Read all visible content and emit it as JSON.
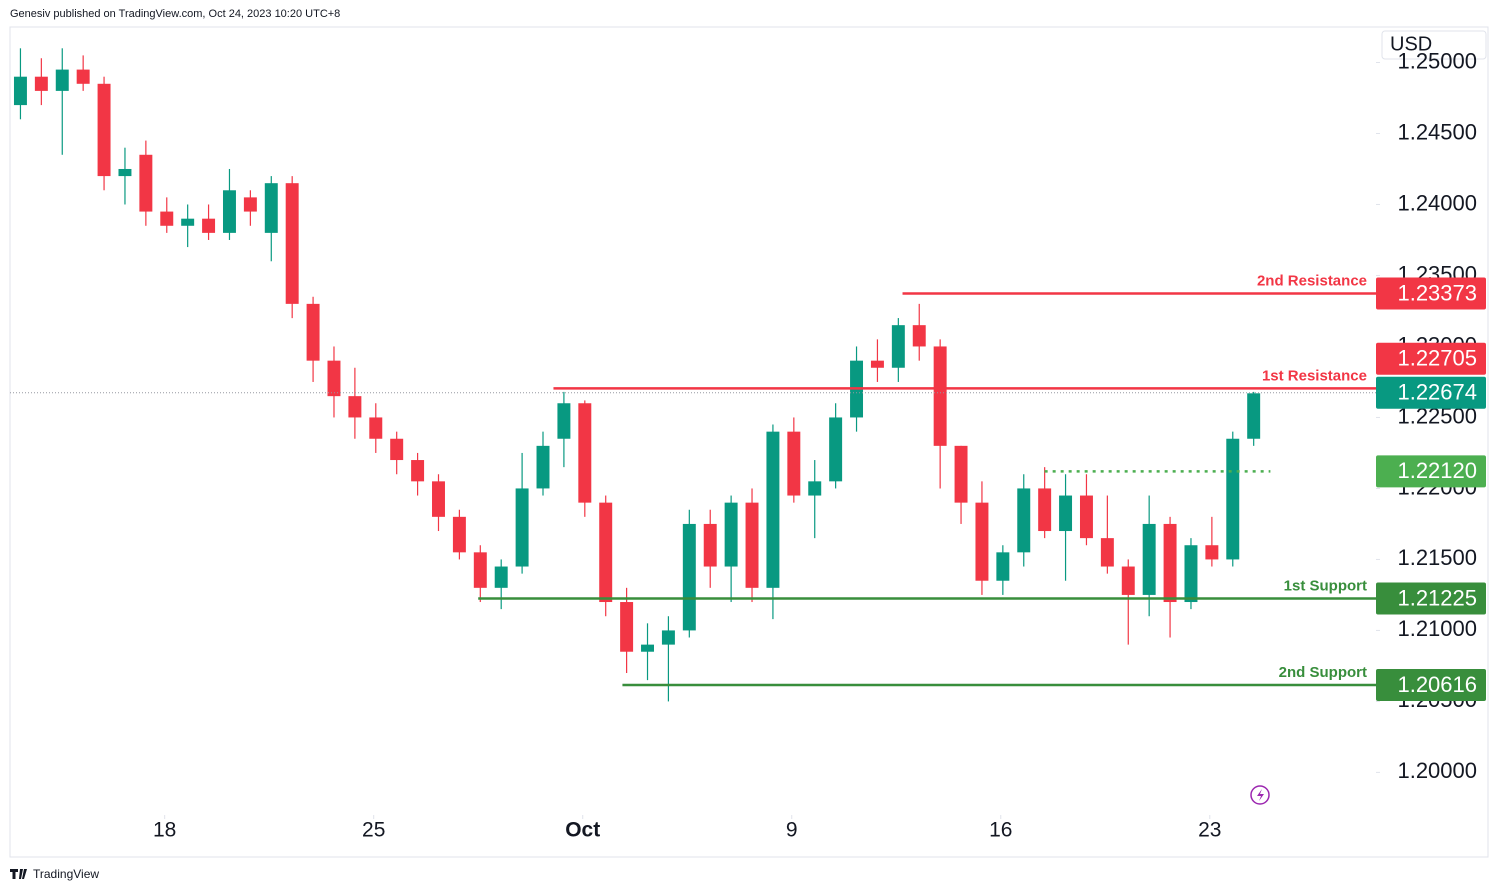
{
  "header": "Genesiv published on TradingView.com, Oct 24, 2023 10:20 UTC+8",
  "footer": "TradingView",
  "chart_data": {
    "type": "candlestick",
    "currency": "USD",
    "up_color": "#089981",
    "down_color": "#f23645",
    "xlim": [
      0,
      65.4
    ],
    "ylim": [
      1.197,
      1.2525
    ],
    "xticks": [
      {
        "value": 7.4,
        "label": "18"
      },
      {
        "value": 17.4,
        "label": "25"
      },
      {
        "value": 27.4,
        "label": "Oct"
      },
      {
        "value": 37.4,
        "label": "9"
      },
      {
        "value": 47.4,
        "label": "16"
      },
      {
        "value": 57.4,
        "label": "23"
      }
    ],
    "yticks": [
      {
        "value": 1.25,
        "label": "1.25000"
      },
      {
        "value": 1.245,
        "label": "1.24500"
      },
      {
        "value": 1.24,
        "label": "1.24000"
      },
      {
        "value": 1.235,
        "label": "1.23500"
      },
      {
        "value": 1.23,
        "label": "1.23000"
      },
      {
        "value": 1.225,
        "label": "1.22500"
      },
      {
        "value": 1.22,
        "label": "1.22000"
      },
      {
        "value": 1.215,
        "label": "1.21500"
      },
      {
        "value": 1.21,
        "label": "1.21000"
      },
      {
        "value": 1.205,
        "label": "1.20500"
      },
      {
        "value": 1.2,
        "label": "1.20000"
      }
    ],
    "x": [
      0.5,
      1.5,
      2.5,
      3.5,
      4.5,
      5.5,
      6.5,
      7.5,
      8.5,
      9.5,
      10.5,
      11.5,
      12.5,
      13.5,
      14.5,
      15.5,
      16.5,
      17.5,
      18.5,
      19.5,
      20.5,
      21.5,
      22.5,
      23.5,
      24.5,
      25.5,
      26.5,
      27.5,
      28.5,
      29.5,
      30.5,
      31.5,
      32.5,
      33.5,
      34.5,
      35.5,
      36.5,
      37.5,
      38.5,
      39.5,
      40.5,
      41.5,
      42.5,
      43.5,
      44.5,
      45.5,
      46.5,
      47.5,
      48.5,
      49.5,
      50.5,
      51.5,
      52.5,
      53.5,
      54.5,
      55.5,
      56.5,
      57.5,
      58.5,
      59.5
    ],
    "open": [
      1.247,
      1.249,
      1.248,
      1.2495,
      1.2485,
      1.242,
      1.2435,
      1.2395,
      1.2385,
      1.239,
      1.238,
      1.2405,
      1.238,
      1.2415,
      1.233,
      1.229,
      1.2265,
      1.225,
      1.2235,
      1.222,
      1.2205,
      1.218,
      1.2155,
      1.213,
      1.2145,
      1.22,
      1.2235,
      1.226,
      1.219,
      1.212,
      1.2085,
      1.209,
      1.21,
      1.2175,
      1.2145,
      1.219,
      1.213,
      1.224,
      1.2195,
      1.2205,
      1.225,
      1.229,
      1.2285,
      1.2315,
      1.23,
      1.223,
      1.219,
      1.2135,
      1.2155,
      1.22,
      1.217,
      1.2195,
      1.2165,
      1.2145,
      1.2125,
      1.2175,
      1.212,
      1.216,
      1.215,
      1.2235
    ],
    "high": [
      1.251,
      1.2503,
      1.251,
      1.2505,
      1.249,
      1.244,
      1.2445,
      1.2405,
      1.24,
      1.24,
      1.2425,
      1.241,
      1.242,
      1.242,
      1.2335,
      1.23,
      1.2285,
      1.226,
      1.224,
      1.2225,
      1.221,
      1.2185,
      1.216,
      1.215,
      1.2225,
      1.224,
      1.2268,
      1.2262,
      1.2195,
      1.213,
      1.2105,
      1.211,
      1.2185,
      1.2185,
      1.2195,
      1.22,
      1.2245,
      1.225,
      1.222,
      1.226,
      1.23,
      1.2305,
      1.232,
      1.233,
      1.2305,
      1.223,
      1.2205,
      1.216,
      1.221,
      1.2215,
      1.221,
      1.221,
      1.2195,
      1.215,
      1.2195,
      1.218,
      1.2165,
      1.218,
      1.224,
      1.2268
    ],
    "low": [
      1.246,
      1.247,
      1.2435,
      1.248,
      1.241,
      1.24,
      1.2385,
      1.238,
      1.237,
      1.2375,
      1.2375,
      1.2385,
      1.236,
      1.232,
      1.2275,
      1.225,
      1.2235,
      1.2225,
      1.221,
      1.2195,
      1.217,
      1.215,
      1.212,
      1.2115,
      1.214,
      1.2195,
      1.2215,
      1.218,
      1.211,
      1.207,
      1.2065,
      1.205,
      1.2095,
      1.213,
      1.212,
      1.212,
      1.2108,
      1.219,
      1.2165,
      1.22,
      1.224,
      1.2275,
      1.2275,
      1.229,
      1.22,
      1.2175,
      1.2125,
      1.2125,
      1.2145,
      1.2165,
      1.2135,
      1.216,
      1.214,
      1.209,
      1.211,
      1.2095,
      1.2115,
      1.2145,
      1.2145,
      1.223
    ],
    "close": [
      1.249,
      1.248,
      1.2495,
      1.2485,
      1.242,
      1.2425,
      1.2395,
      1.2385,
      1.239,
      1.238,
      1.241,
      1.2395,
      1.2415,
      1.233,
      1.229,
      1.2265,
      1.225,
      1.2235,
      1.222,
      1.2205,
      1.218,
      1.2155,
      1.213,
      1.2145,
      1.22,
      1.223,
      1.226,
      1.219,
      1.212,
      1.2085,
      1.209,
      1.21,
      1.2175,
      1.2145,
      1.219,
      1.213,
      1.224,
      1.2195,
      1.2205,
      1.225,
      1.229,
      1.2285,
      1.2315,
      1.23,
      1.223,
      1.219,
      1.2135,
      1.2155,
      1.22,
      1.217,
      1.2195,
      1.2165,
      1.2145,
      1.2125,
      1.2175,
      1.212,
      1.216,
      1.215,
      1.2235,
      1.2267
    ],
    "levels": [
      {
        "name": "2nd Resistance",
        "value": 1.23373,
        "label": "1.23373",
        "start_x": 42.7,
        "color": "#f23645",
        "style": "solid"
      },
      {
        "name": "1st Resistance",
        "value": 1.22705,
        "label": "1.22705",
        "start_x": 26.0,
        "color": "#f23645",
        "style": "solid"
      },
      {
        "value": 1.22674,
        "label": "1.22674",
        "start_x": 0,
        "color": "#089981",
        "line_color": "#9598a1",
        "style": "dotted"
      },
      {
        "value": 1.2212,
        "label": "1.22120",
        "start_x": 49.5,
        "color": "#4caf50",
        "style": "dotted"
      },
      {
        "name": "1st Support",
        "value": 1.21225,
        "label": "1.21225",
        "start_x": 22.4,
        "color": "#388e3c",
        "style": "solid"
      },
      {
        "name": "2nd Support",
        "value": 1.20616,
        "label": "1.20616",
        "start_x": 29.3,
        "color": "#388e3c",
        "style": "solid"
      }
    ]
  }
}
